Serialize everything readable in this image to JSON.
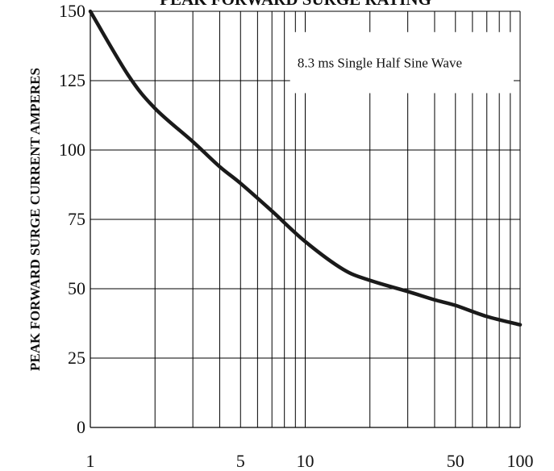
{
  "chart_data": {
    "type": "line",
    "title": "PEAK FORWARD SURGE RATING",
    "ylabel": "PEAK FORWARD SURGE CURRENT AMPERES",
    "xlabel": "",
    "annotation": "8.3 ms Single Half Sine Wave",
    "x_scale": "log",
    "xlim": [
      1,
      100
    ],
    "ylim": [
      0,
      150
    ],
    "x_tick_labels": [
      "1",
      "5",
      "10",
      "50",
      "100"
    ],
    "x_ticks": [
      1,
      5,
      10,
      50,
      100
    ],
    "y_ticks": [
      0,
      25,
      50,
      75,
      100,
      125,
      150
    ],
    "y_tick_labels": [
      "0",
      "25",
      "50",
      "75",
      "100",
      "125",
      "150"
    ],
    "grid": true,
    "line_color": "#1a1a1a",
    "series": [
      {
        "x": [
          1,
          1.5,
          2,
          3,
          4,
          5,
          7,
          10,
          15,
          20,
          30,
          40,
          50,
          70,
          100
        ],
        "values": [
          150,
          127,
          115,
          103,
          94,
          88,
          78,
          67,
          57,
          53,
          49,
          46,
          44,
          40,
          37
        ]
      }
    ]
  }
}
